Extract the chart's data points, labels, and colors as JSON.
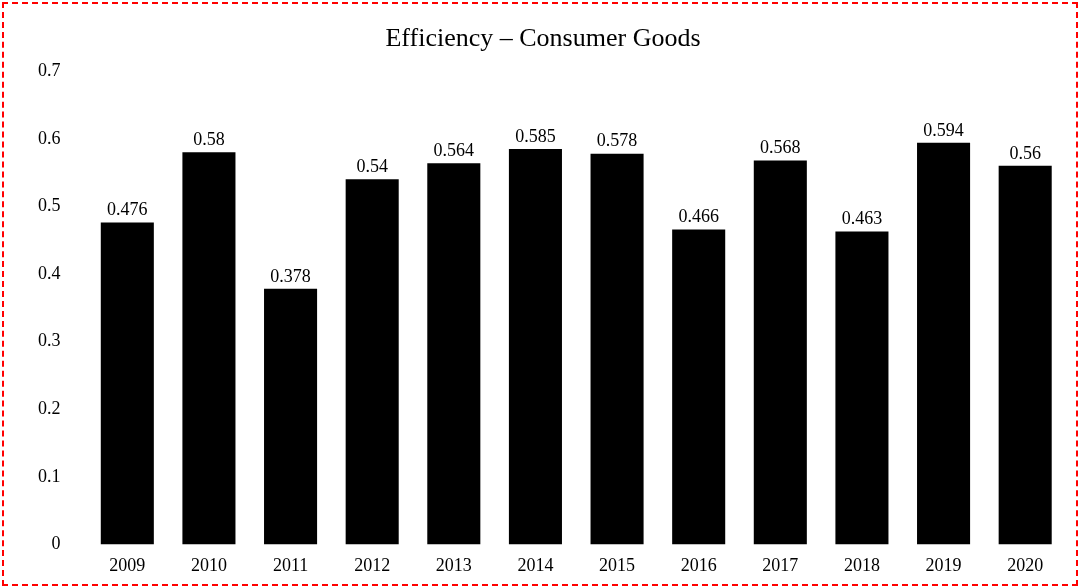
{
  "chart_data": {
    "type": "bar",
    "title": "Efficiency – Consumer Goods",
    "categories": [
      "2009",
      "2010",
      "2011",
      "2012",
      "2013",
      "2014",
      "2015",
      "2016",
      "2017",
      "2018",
      "2019",
      "2020"
    ],
    "values": [
      0.476,
      0.58,
      0.378,
      0.54,
      0.564,
      0.585,
      0.578,
      0.466,
      0.568,
      0.463,
      0.594,
      0.56
    ],
    "color": "#000000",
    "ylim": [
      0,
      0.7
    ],
    "yticks": [
      0,
      0.1,
      0.2,
      0.3,
      0.4,
      0.5,
      0.6,
      0.7
    ],
    "data_labels": true
  }
}
